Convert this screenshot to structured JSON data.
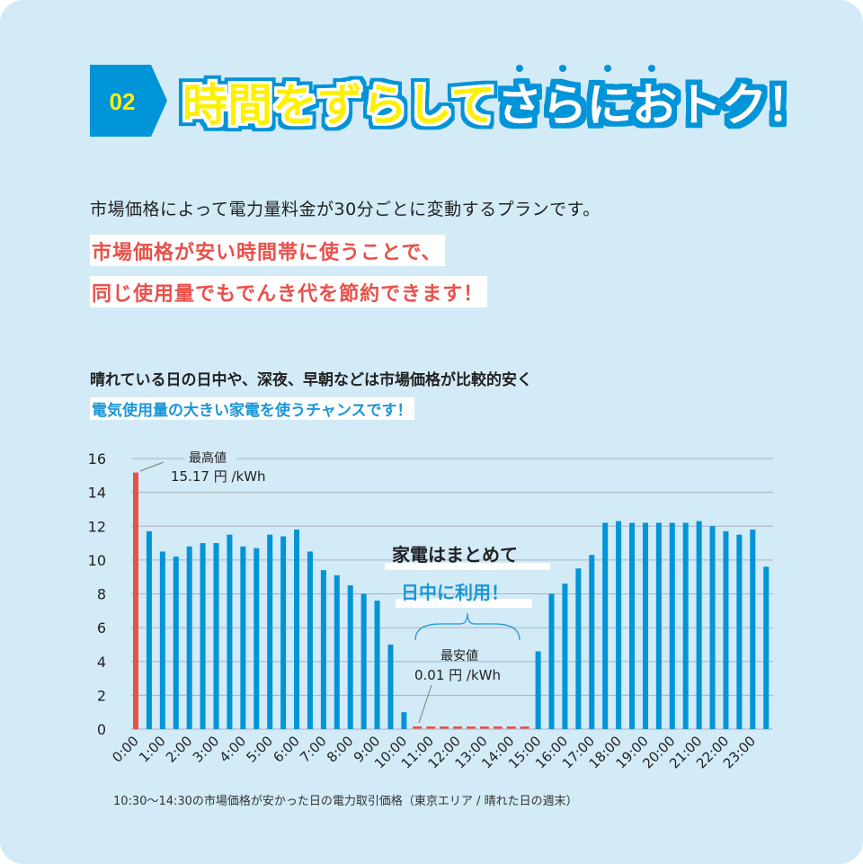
{
  "header": {
    "number": "02",
    "title_part1": "時間をずらして",
    "title_part2": "さらにおトク！",
    "colors": {
      "badge": "#0094d8",
      "title_yellow": "#fff000",
      "title_outline": "#0094d8"
    }
  },
  "intro": "市場価格によって電力量料金が30分ごとに変動するプランです。",
  "highlight_lines": [
    "市場価格が安い時間帯に使うことで、",
    "同じ使用量でもでんき代を節約できます！"
  ],
  "chart_intro": {
    "line1": "晴れている日の日中や、深夜、早朝などは市場価格が比較的安く",
    "line2": "電気使用量の大きい家電を使うチャンスです！"
  },
  "chart_data": {
    "type": "bar",
    "ylim": [
      0,
      16
    ],
    "yticks": [
      "0",
      "2",
      "4",
      "6",
      "8",
      "10",
      "12",
      "14",
      "16"
    ],
    "grid": true,
    "xtick_labels": [
      "0:00",
      "1:00",
      "2:00",
      "3:00",
      "4:00",
      "5:00",
      "6:00",
      "7:00",
      "8:00",
      "9:00",
      "10:00",
      "11:00",
      "12:00",
      "13:00",
      "14:00",
      "15:00",
      "16:00",
      "17:00",
      "18:00",
      "19:00",
      "20:00",
      "21:00",
      "22:00",
      "23:00"
    ],
    "categories": [
      "0:00",
      "0:30",
      "1:00",
      "1:30",
      "2:00",
      "2:30",
      "3:00",
      "3:30",
      "4:00",
      "4:30",
      "5:00",
      "5:30",
      "6:00",
      "6:30",
      "7:00",
      "7:30",
      "8:00",
      "8:30",
      "9:00",
      "9:30",
      "10:00",
      "10:30",
      "11:00",
      "11:30",
      "12:00",
      "12:30",
      "13:00",
      "13:30",
      "14:00",
      "14:30",
      "15:00",
      "15:30",
      "16:00",
      "16:30",
      "17:00",
      "17:30",
      "18:00",
      "18:30",
      "19:00",
      "19:30",
      "20:00",
      "20:30",
      "21:00",
      "21:30",
      "22:00",
      "22:30",
      "23:00",
      "23:30"
    ],
    "values": [
      15.17,
      11.7,
      10.5,
      10.2,
      10.8,
      11.0,
      11.0,
      11.5,
      10.8,
      10.7,
      11.5,
      11.4,
      11.8,
      10.5,
      9.4,
      9.1,
      8.5,
      8.0,
      7.6,
      5.0,
      1.0,
      0.01,
      0.01,
      0.01,
      0.01,
      0.01,
      0.01,
      0.01,
      0.01,
      0.01,
      4.6,
      8.0,
      8.6,
      9.5,
      10.3,
      12.2,
      12.3,
      12.2,
      12.2,
      12.2,
      12.2,
      12.2,
      12.3,
      12.0,
      11.7,
      11.5,
      11.8,
      9.6
    ],
    "highlighted_indices": [
      0,
      21,
      22,
      23,
      24,
      25,
      26,
      27,
      28,
      29
    ],
    "colors": {
      "bar": "#0094d8",
      "highlight": "#e9504a",
      "grid": "#a9b4bb"
    },
    "annotations": {
      "max_label": "最高値",
      "max_value": "15.17 円 /kWh",
      "min_label": "最安値",
      "min_value": "0.01 円 /kWh",
      "callout1": "家電はまとめて",
      "callout2": "日中に利用！"
    }
  },
  "footnote": "10:30〜14:30の市場価格が安かった日の電力取引価格（東京エリア / 晴れた日の週末）"
}
